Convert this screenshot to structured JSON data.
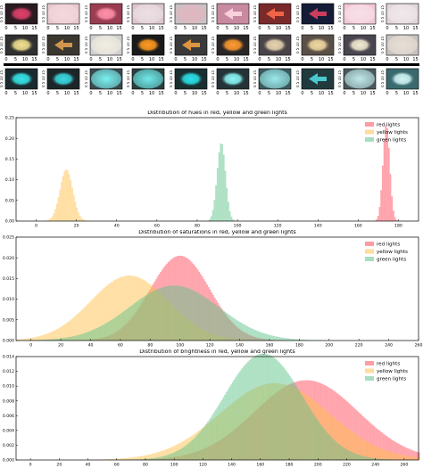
{
  "thumbnails": {
    "tick_labels": [
      "0",
      "5",
      "10",
      "15"
    ],
    "y_tick_labels": [
      "0",
      "5",
      "10",
      "15"
    ],
    "rows": [
      {
        "light": "red",
        "cells": [
          {
            "bg": "#2a1a22",
            "blob": "#e0406a",
            "shape": "oval"
          },
          {
            "bg": "#e8c9d0",
            "blob": "#f4d8de",
            "shape": "soft"
          },
          {
            "bg": "#9a3c52",
            "blob": "#ff8fa8",
            "shape": "oval"
          },
          {
            "bg": "#dcc6cc",
            "blob": "#ece0e4",
            "shape": "soft"
          },
          {
            "bg": "#c9c1c4",
            "blob": "#e2b6c0",
            "shape": "soft"
          },
          {
            "bg": "#c88aa0",
            "blob": "#ffd6e2",
            "shape": "arrow"
          },
          {
            "bg": "#7a2a2a",
            "blob": "#ff6a4a",
            "shape": "arrow"
          },
          {
            "bg": "#141c38",
            "blob": "#e04060",
            "shape": "arrow"
          },
          {
            "bg": "#f0c8d4",
            "blob": "#f8e0e8",
            "shape": "soft"
          },
          {
            "bg": "#e2d6da",
            "blob": "#f0e8ea",
            "shape": "soft"
          }
        ]
      },
      {
        "light": "yellow",
        "cells": [
          {
            "bg": "#303030",
            "blob": "#f2e090",
            "shape": "oval"
          },
          {
            "bg": "#3a3630",
            "blob": "#e0a050",
            "shape": "arrow"
          },
          {
            "bg": "#cfcfcf",
            "blob": "#f2eee2",
            "shape": "soft"
          },
          {
            "bg": "#1a1a1a",
            "blob": "#ff9a20",
            "shape": "oval"
          },
          {
            "bg": "#3a3a3a",
            "blob": "#f0a040",
            "shape": "arrow"
          },
          {
            "bg": "#2a2626",
            "blob": "#ff9a30",
            "shape": "oval"
          },
          {
            "bg": "#4a4448",
            "blob": "#e8d4b0",
            "shape": "oval"
          },
          {
            "bg": "#5a5048",
            "blob": "#f0d8a0",
            "shape": "oval"
          },
          {
            "bg": "#4a4650",
            "blob": "#f2ead0",
            "shape": "oval"
          },
          {
            "bg": "#c8c2c0",
            "blob": "#e8e0d6",
            "shape": "soft"
          }
        ]
      },
      {
        "light": "green",
        "cells": [
          {
            "bg": "#1a2a2e",
            "blob": "#36e4e8",
            "shape": "oval"
          },
          {
            "bg": "#1c2628",
            "blob": "#3ad8e0",
            "shape": "oval"
          },
          {
            "bg": "#3a4a4e",
            "blob": "#7af0f0",
            "shape": "soft"
          },
          {
            "bg": "#2a4040",
            "blob": "#70e8e8",
            "shape": "soft"
          },
          {
            "bg": "#1a2e30",
            "blob": "#2ae0e8",
            "shape": "oval"
          },
          {
            "bg": "#243436",
            "blob": "#8af4f4",
            "shape": "oval"
          },
          {
            "bg": "#3a5a5e",
            "blob": "#9ae8ea",
            "shape": "soft"
          },
          {
            "bg": "#203a3e",
            "blob": "#50d8e0",
            "shape": "arrow"
          },
          {
            "bg": "#4a5a5c",
            "blob": "#c0e8ea",
            "shape": "soft"
          },
          {
            "bg": "#3a6a6e",
            "blob": "#d0f4f4",
            "shape": "oval"
          }
        ]
      }
    ]
  },
  "chart_data": [
    {
      "type": "histogram",
      "title": "Distribution of hues in red, yellow and green lights",
      "xlim": [
        -10,
        190
      ],
      "ylim": [
        0,
        0.25
      ],
      "x_ticks": [
        0,
        20,
        40,
        60,
        80,
        100,
        120,
        140,
        160,
        180
      ],
      "y_ticks": [
        0.0,
        0.05,
        0.1,
        0.15,
        0.2,
        0.25
      ],
      "x_tick_labels": [
        "0",
        "20",
        "40",
        "60",
        "80",
        "100",
        "120",
        "140",
        "160",
        "180"
      ],
      "y_tick_labels": [
        "0.00",
        "0.05",
        "0.10",
        "0.15",
        "0.20",
        "0.25"
      ],
      "legend_position": "top-right",
      "grid": false,
      "series": [
        {
          "name": "red lights",
          "color": "#ff4a5a",
          "mean": 174,
          "std": 1.7,
          "peak": 0.235
        },
        {
          "name": "yellow lights",
          "color": "#ffc04a",
          "mean": 15,
          "std": 3.2,
          "peak": 0.125
        },
        {
          "name": "green lights",
          "color": "#5ec48a",
          "mean": 92,
          "std": 2.1,
          "peak": 0.19
        }
      ]
    },
    {
      "type": "histogram",
      "title": "Distribution of saturations in red, yellow and green lights",
      "xlim": [
        -10,
        260
      ],
      "ylim": [
        0,
        0.025
      ],
      "x_ticks": [
        0,
        20,
        40,
        60,
        80,
        100,
        120,
        140,
        160,
        180,
        200,
        220,
        240,
        260
      ],
      "y_ticks": [
        0.0,
        0.005,
        0.01,
        0.015,
        0.02,
        0.025
      ],
      "x_tick_labels": [
        "0",
        "20",
        "40",
        "60",
        "80",
        "100",
        "120",
        "140",
        "160",
        "180",
        "200",
        "220",
        "240",
        "260"
      ],
      "y_tick_labels": [
        "0.000",
        "0.005",
        "0.010",
        "0.015",
        "0.020",
        "0.025"
      ],
      "legend_position": "top-right",
      "grid": false,
      "series": [
        {
          "name": "red lights",
          "color": "#ff4a5a",
          "mean": 100,
          "std": 20,
          "peak": 0.0205
        },
        {
          "name": "yellow lights",
          "color": "#ffc04a",
          "mean": 66,
          "std": 26,
          "peak": 0.0157
        },
        {
          "name": "green lights",
          "color": "#5ec48a",
          "mean": 96,
          "std": 30,
          "peak": 0.0133
        }
      ]
    },
    {
      "type": "histogram",
      "title": "Distribution of brightness in red, yellow and green lights",
      "xlim": [
        -10,
        270
      ],
      "ylim": [
        0,
        0.014
      ],
      "x_ticks": [
        0,
        20,
        40,
        60,
        80,
        100,
        120,
        140,
        160,
        180,
        200,
        220,
        240,
        260
      ],
      "y_ticks": [
        0.0,
        0.002,
        0.004,
        0.006,
        0.008,
        0.01,
        0.012,
        0.014
      ],
      "x_tick_labels": [
        "0",
        "20",
        "40",
        "60",
        "80",
        "100",
        "120",
        "140",
        "160",
        "180",
        "200",
        "220",
        "240",
        "260"
      ],
      "y_tick_labels": [
        "0.000",
        "0.002",
        "0.004",
        "0.006",
        "0.008",
        "0.010",
        "0.012",
        "0.014"
      ],
      "legend_position": "top-right",
      "grid": false,
      "series": [
        {
          "name": "red lights",
          "color": "#ff4a5a",
          "mean": 192,
          "std": 36,
          "peak": 0.0108
        },
        {
          "name": "yellow lights",
          "color": "#ffc04a",
          "mean": 170,
          "std": 38,
          "peak": 0.0104
        },
        {
          "name": "green lights",
          "color": "#5ec48a",
          "mean": 162,
          "std": 27,
          "peak": 0.0144
        }
      ]
    }
  ]
}
